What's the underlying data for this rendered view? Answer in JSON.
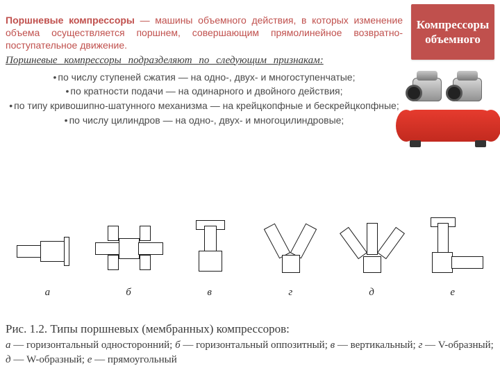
{
  "badge": {
    "text": "Компрессоры объемного"
  },
  "lead": {
    "term": "Поршневые компрессоры",
    "rest": " — машины объемного действия, в которых изменение объема осуществляется поршнем, совершающим прямолинейное возвратно-поступательное движение."
  },
  "subhead": "Поршневые компрессоры подразделяют по следующим признакам:",
  "criteria": [
    "по числу ступеней сжатия — на одно-, двух- и многоступенчатые;",
    "по кратности подачи — на одинарного и двойного действия;",
    "по типу кривошипно-шатунного механизма — на крейцкопфные и бескрейцкопфные;",
    "по числу цилиндров — на одно-, двух- и многоцилиндровые;"
  ],
  "diagram_labels": [
    "а",
    "б",
    "в",
    "г",
    "д",
    "е"
  ],
  "caption": {
    "title": "Рис. 1.2. Типы поршневых (мембранных) компрессоров:",
    "legend_parts": [
      {
        "k": "а",
        "v": "горизонтальный односторонний"
      },
      {
        "k": "б",
        "v": "горизонтальный оппозитный"
      },
      {
        "k": "в",
        "v": "вертикальный"
      },
      {
        "k": "г",
        "v": "V-образный"
      },
      {
        "k": "д",
        "v": "W-образный"
      },
      {
        "k": "е",
        "v": "прямоугольный"
      }
    ]
  },
  "colors": {
    "accent": "#c0504d",
    "tank": "#e63b2e",
    "text": "#4a4a4a"
  }
}
